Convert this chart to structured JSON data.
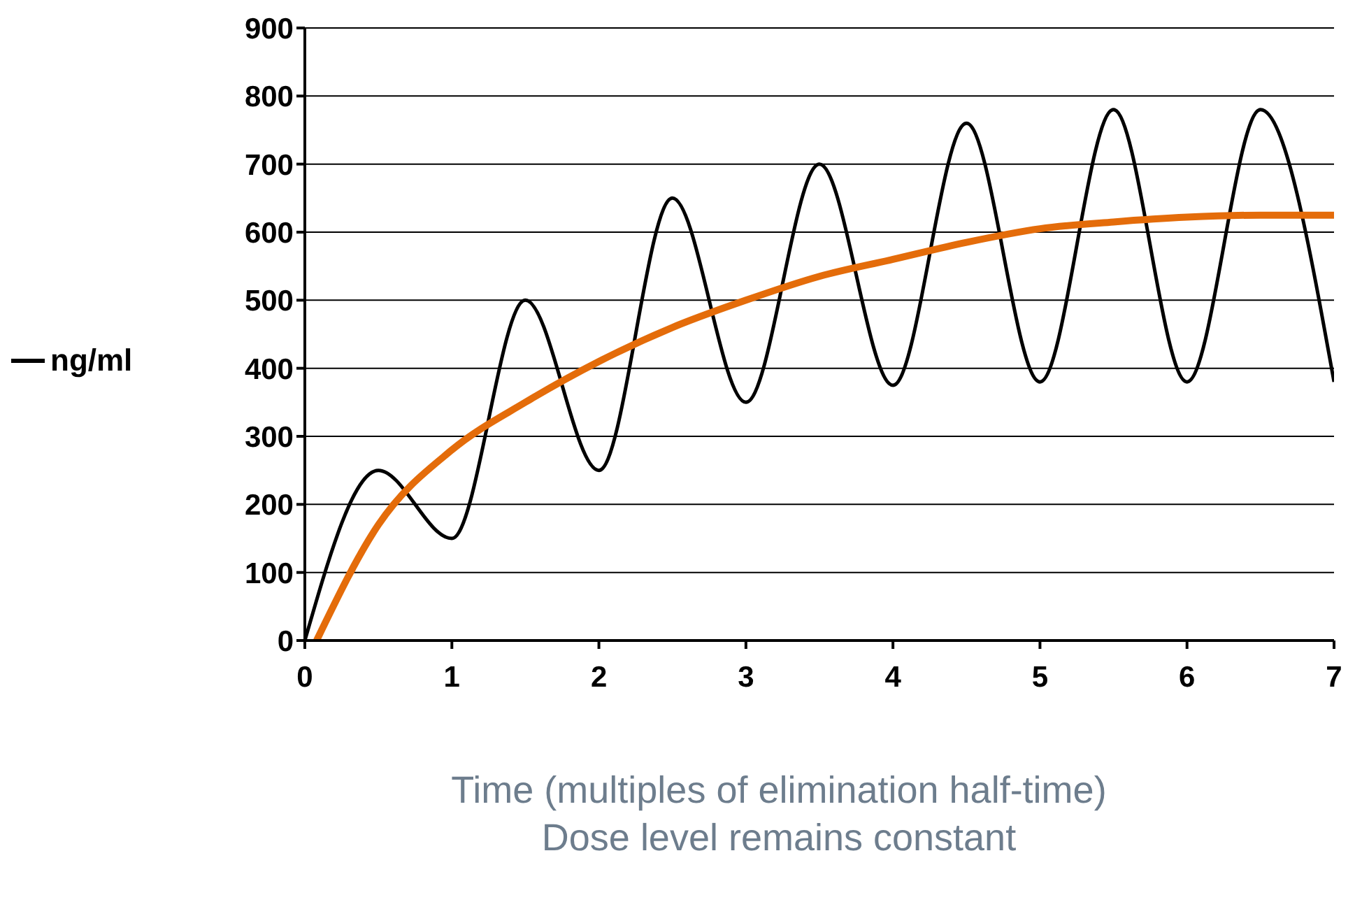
{
  "chart_data": {
    "type": "line",
    "xlabel": "Time (multiples of elimination half-time)",
    "annotations": [
      "Dose level remains constant"
    ],
    "xlim": [
      0,
      7
    ],
    "xticks": [
      0,
      1,
      2,
      3,
      4,
      5,
      6,
      7
    ],
    "ylim": [
      0,
      900
    ],
    "yticks": [
      0,
      100,
      200,
      300,
      400,
      500,
      600,
      700,
      800,
      900
    ],
    "grid": "y",
    "legend": "left",
    "marker": "none",
    "line_style": "solid",
    "series": [
      {
        "name": "ng/ml",
        "color": "#000000",
        "x": [
          0,
          0.5,
          1,
          1.5,
          2,
          2.5,
          3,
          3.5,
          4,
          4.5,
          5,
          5.5,
          6,
          6.5,
          7
        ],
        "values": [
          0,
          250,
          150,
          500,
          250,
          650,
          350,
          700,
          375,
          760,
          380,
          780,
          380,
          780,
          380
        ]
      },
      {
        "color": "#e46c0a",
        "x": [
          0.08,
          0.5,
          1,
          1.5,
          2,
          2.5,
          3,
          3.5,
          4,
          4.5,
          5,
          5.5,
          6,
          6.5,
          7
        ],
        "values": [
          0,
          170,
          280,
          350,
          410,
          460,
          500,
          535,
          560,
          585,
          605,
          615,
          622,
          625,
          625
        ]
      }
    ]
  }
}
